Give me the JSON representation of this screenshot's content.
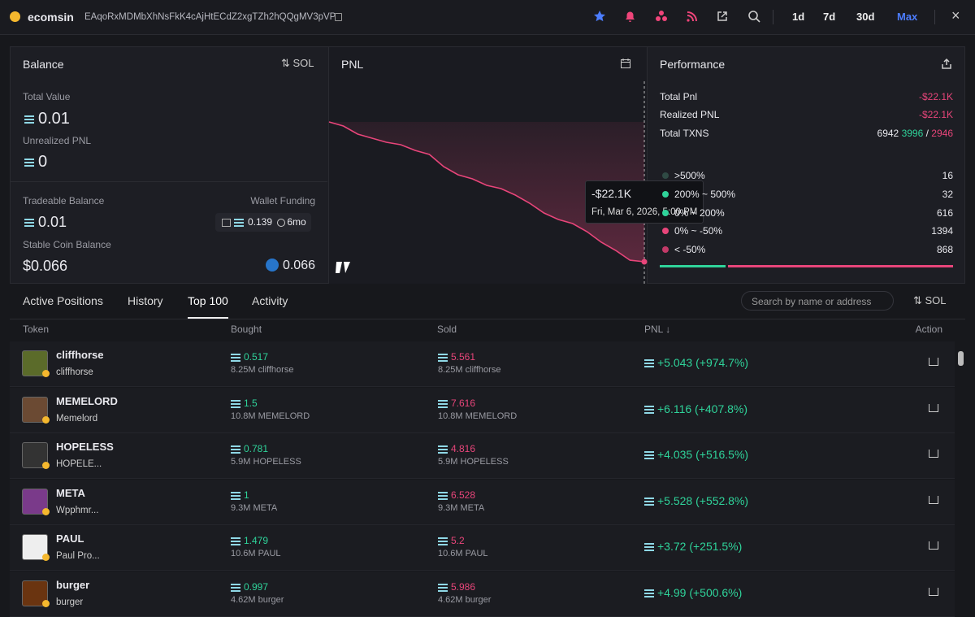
{
  "header": {
    "name": "ecomsin",
    "address": "EAqoRxMDMbXhNsFkK4cAjHtECdZ2xgTZh2hQQgMV3pVP",
    "timeframes": [
      "1d",
      "7d",
      "30d",
      "Max"
    ]
  },
  "balance": {
    "title": "Balance",
    "currency": "SOL",
    "total_value_label": "Total Value",
    "total_value": "0.01",
    "unrealized_label": "Unrealized PNL",
    "unrealized": "0",
    "tradeable_label": "Tradeable Balance",
    "tradeable": "0.01",
    "wallet_funding_label": "Wallet Funding",
    "wallet_funding": "0.139",
    "wallet_age": "6mo",
    "stable_label": "Stable Coin Balance",
    "stable": "$0.066",
    "stable_usdc": "0.066"
  },
  "pnl_chart": {
    "type": "line",
    "title": "PNL",
    "color": "#e8457a",
    "values": [
      0,
      -640,
      -1930,
      -2570,
      -3210,
      -3600,
      -4500,
      -5140,
      -7070,
      -8350,
      -9000,
      -10020,
      -10540,
      -11570,
      -12850,
      -14390,
      -15420,
      -16060,
      -17350,
      -19020,
      -20300,
      -21850,
      -22100
    ],
    "tooltip_value": "-$22.1K",
    "tooltip_date": "Fri, Mar 6, 2026, 5:00 PM"
  },
  "performance": {
    "title": "Performance",
    "total_pnl_label": "Total Pnl",
    "total_pnl": "-$22.1K",
    "realized_label": "Realized PNL",
    "realized": "-$22.1K",
    "txns_label": "Total TXNS",
    "txns_total": 6942,
    "txns_buys": 3996,
    "txns_sells": 2946,
    "distribution": [
      {
        "label": ">500%",
        "count": 16,
        "color": "#2f4a44"
      },
      {
        "label": "200% ~ 500%",
        "count": 32,
        "color": "#2fd39a"
      },
      {
        "label": "0% ~ 200%",
        "count": 616,
        "color": "#2fd39a"
      },
      {
        "label": "0% ~ -50%",
        "count": 1394,
        "color": "#e8457a"
      },
      {
        "label": "< -50%",
        "count": 868,
        "color": "#c23a68"
      }
    ]
  },
  "positions": {
    "tabs": [
      "Active Positions",
      "History",
      "Top 100",
      "Activity"
    ],
    "search_placeholder": "Search by name or address",
    "currency": "SOL",
    "columns": [
      "Token",
      "Bought",
      "Sold",
      "PNL ↓",
      "Action"
    ],
    "rows": [
      {
        "name": "cliffhorse",
        "sub": "cliffhorse",
        "bought": "0.517",
        "bought_amount": "8.25M cliffhorse",
        "sold": "5.561",
        "sold_amount": "8.25M cliffhorse",
        "pnl": "+5.043 (+974.7%)"
      },
      {
        "name": "MEMELORD",
        "sub": "Memelord",
        "bought": "1.5",
        "bought_amount": "10.8M MEMELORD",
        "sold": "7.616",
        "sold_amount": "10.8M MEMELORD",
        "pnl": "+6.116 (+407.8%)"
      },
      {
        "name": "HOPELESS",
        "sub": "HOPELE...",
        "bought": "0.781",
        "bought_amount": "5.9M HOPELESS",
        "sold": "4.816",
        "sold_amount": "5.9M HOPELESS",
        "pnl": "+4.035 (+516.5%)"
      },
      {
        "name": "META",
        "sub": "Wpphmr...",
        "bought": "1",
        "bought_amount": "9.3M META",
        "sold": "6.528",
        "sold_amount": "9.3M META",
        "pnl": "+5.528 (+552.8%)"
      },
      {
        "name": "PAUL",
        "sub": "Paul Pro...",
        "bought": "1.479",
        "bought_amount": "10.6M PAUL",
        "sold": "5.2",
        "sold_amount": "10.6M PAUL",
        "pnl": "+3.72 (+251.5%)"
      },
      {
        "name": "burger",
        "sub": "burger",
        "bought": "0.997",
        "bought_amount": "4.62M burger",
        "sold": "5.986",
        "sold_amount": "4.62M burger",
        "pnl": "+4.99 (+500.6%)"
      }
    ]
  }
}
